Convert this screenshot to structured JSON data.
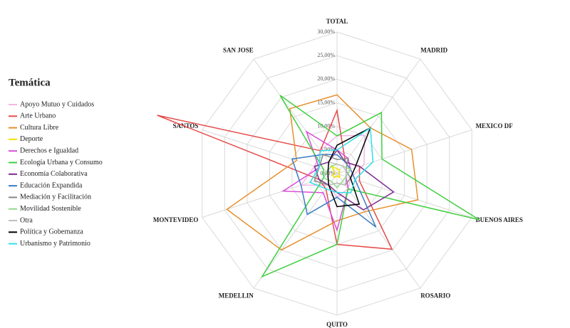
{
  "chart_data": {
    "type": "radar",
    "legend_title": "Temática",
    "legend": "left",
    "grid": true,
    "categories": [
      "TOTAL",
      "MADRID",
      "MEXICO DF",
      "BUENOS AIRES",
      "ROSARIO",
      "QUITO",
      "MEDELLIN",
      "MONTEVIDEO",
      "SANTOS",
      "SAN JOSE"
    ],
    "ylim": [
      0,
      30
    ],
    "yticks": [
      {
        "value": 0,
        "label": "0,00%"
      },
      {
        "value": 5,
        "label": "5,00%"
      },
      {
        "value": 10,
        "label": "10,00%"
      },
      {
        "value": 15,
        "label": "15,00%"
      },
      {
        "value": 20,
        "label": "20,00%"
      },
      {
        "value": 25,
        "label": "25,00%"
      },
      {
        "value": 30,
        "label": "30,00%"
      }
    ],
    "series": [
      {
        "name": "Apoyo Mutuo y Cuidados",
        "color": "#f4b6e6",
        "values": [
          8,
          10,
          6,
          3,
          4,
          5,
          3,
          8,
          5,
          6
        ]
      },
      {
        "name": "Arte Urbano",
        "color": "#e64b4b",
        "values": [
          13.4,
          3,
          5,
          5,
          19.8,
          15,
          4,
          4,
          40,
          6
        ]
      },
      {
        "name": "Cultura Libre",
        "color": "#e6912e",
        "values": [
          16.7,
          12,
          16.6,
          18,
          10,
          10,
          20,
          24.5,
          9,
          17
        ]
      },
      {
        "name": "Deporte",
        "color": "#f2e200",
        "values": [
          1,
          1,
          0.5,
          0.5,
          1,
          0.5,
          1,
          1,
          0.5,
          2
        ]
      },
      {
        "name": "Derechos e Igualdad",
        "color": "#d94fd9",
        "values": [
          5,
          4,
          3,
          2,
          4,
          12,
          5,
          12,
          4,
          11
        ]
      },
      {
        "name": "Ecología Urbana y Consumo",
        "color": "#3fcf3f",
        "values": [
          8,
          16,
          10,
          31.6,
          4,
          15,
          27,
          3,
          3,
          20.5
        ]
      },
      {
        "name": "Economía Colaborativa",
        "color": "#7b2d8e",
        "values": [
          5,
          3,
          5,
          12.6,
          9.5,
          4,
          3,
          4,
          5,
          3
        ]
      },
      {
        "name": "Educación Expandida",
        "color": "#3b7dc4",
        "values": [
          4,
          3,
          3,
          4,
          14,
          5,
          10.7,
          8,
          10,
          5
        ]
      },
      {
        "name": "Mediación y Facilitación",
        "color": "#888888",
        "values": [
          3,
          4,
          2,
          3,
          3,
          2,
          3,
          5,
          4,
          5
        ]
      },
      {
        "name": "Movilidad Sostenible",
        "color": "#8fd98f",
        "values": [
          2,
          2,
          3,
          2,
          2,
          3,
          2,
          3,
          2,
          2
        ]
      },
      {
        "name": "Otra",
        "color": "#bfbfbf",
        "values": [
          2,
          2,
          2,
          2,
          3,
          2,
          3,
          2,
          2,
          3
        ]
      },
      {
        "name": "Política y Gobernanza",
        "color": "#000000",
        "values": [
          6,
          12,
          4,
          3,
          8,
          7,
          3,
          2,
          2,
          3
        ]
      },
      {
        "name": "Urbanismo y Patrimonio",
        "color": "#2fe0e8",
        "values": [
          5,
          12,
          8,
          4,
          5,
          4,
          4,
          6,
          4,
          6
        ]
      }
    ]
  }
}
